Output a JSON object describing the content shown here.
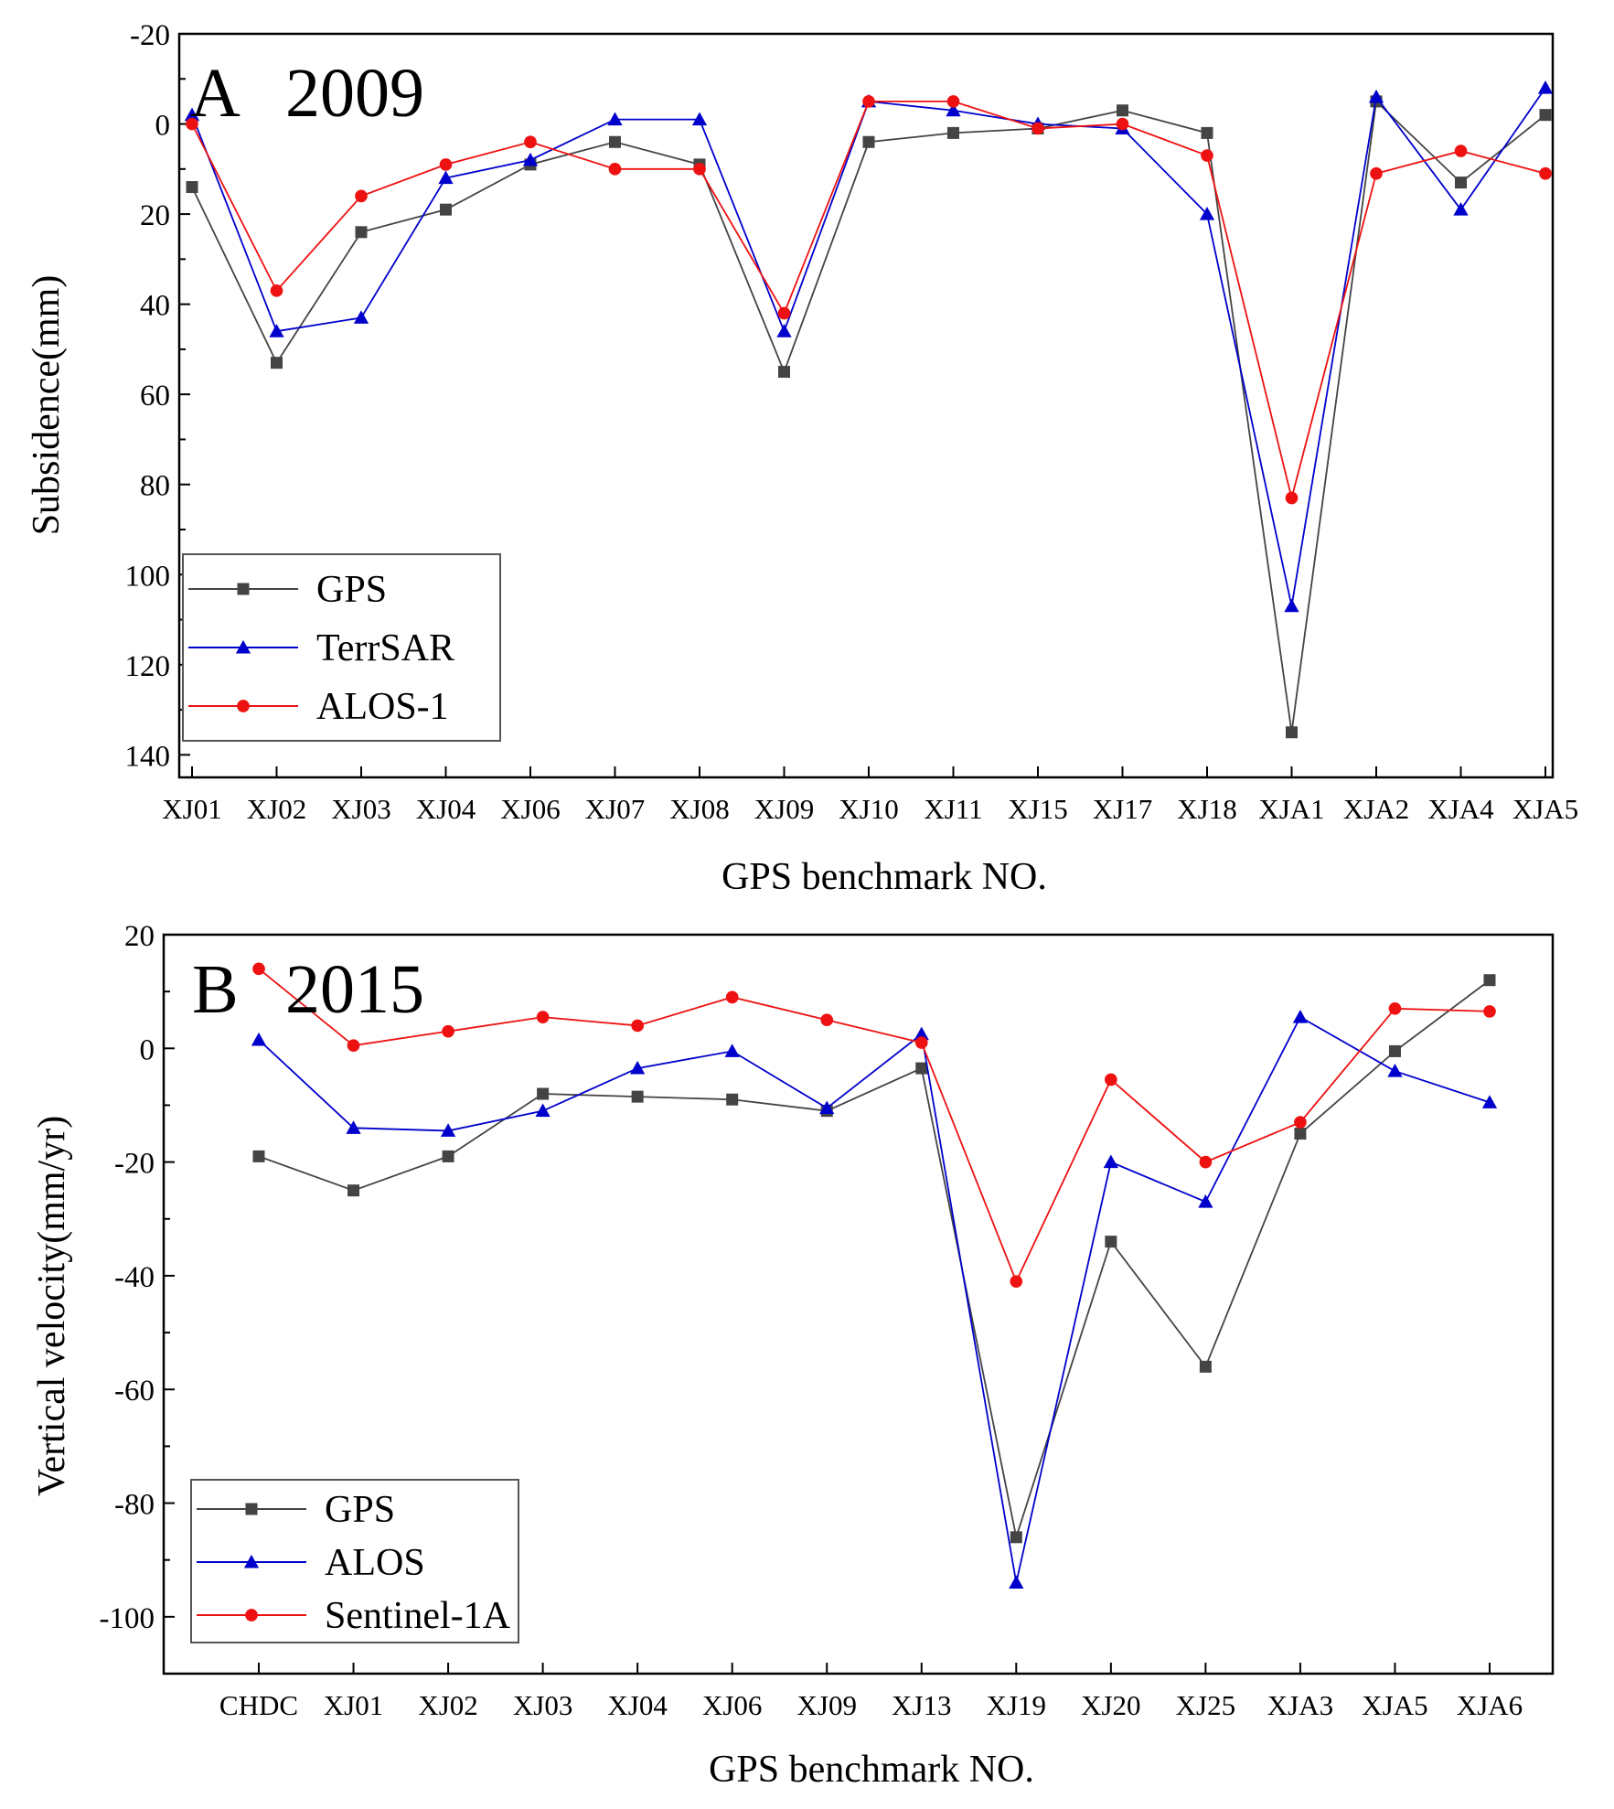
{
  "colors": {
    "gps": "#444444",
    "blue": "#0000cc",
    "red": "#ee1111"
  },
  "chart_data": [
    {
      "type": "line",
      "panel": "A",
      "title": "2009",
      "xlabel": "GPS benchmark NO.",
      "ylabel": "Subsidence(mm)",
      "y_inverted": true,
      "ylim": [
        -20,
        145
      ],
      "yticks": [
        -20,
        0,
        20,
        40,
        60,
        80,
        100,
        120,
        140
      ],
      "categories": [
        "XJ01",
        "XJ02",
        "XJ03",
        "XJ04",
        "XJ06",
        "XJ07",
        "XJ08",
        "XJ09",
        "XJ10",
        "XJ11",
        "XJ15",
        "XJ17",
        "XJ18",
        "XJA1",
        "XJA2",
        "XJA4",
        "XJA5"
      ],
      "legend_position": "bottom-left",
      "series": [
        {
          "name": "GPS",
          "marker": "square",
          "color": "#444444",
          "values": [
            14,
            53,
            24,
            19,
            9,
            4,
            9,
            55,
            4,
            2,
            1,
            -3,
            2,
            135,
            -5,
            13,
            -2
          ]
        },
        {
          "name": "TerrSAR",
          "marker": "triangle",
          "color": "#0000cc",
          "values": [
            -2,
            46,
            43,
            12,
            8,
            -1,
            -1,
            46,
            -5,
            -3,
            0,
            1,
            20,
            107,
            -6,
            19,
            -8
          ]
        },
        {
          "name": "ALOS-1",
          "marker": "circle",
          "color": "#ee1111",
          "values": [
            0,
            37,
            16,
            9,
            4,
            10,
            10,
            42,
            -5,
            -5,
            1,
            0,
            7,
            83,
            11,
            6,
            11
          ]
        }
      ]
    },
    {
      "type": "line",
      "panel": "B",
      "title": "2015",
      "xlabel": "GPS benchmark NO.",
      "ylabel": "Vertical velocity(mm/yr)",
      "ylim": [
        -110,
        20
      ],
      "yticks": [
        -100,
        -80,
        -60,
        -40,
        -20,
        0,
        20
      ],
      "categories": [
        "CHDC",
        "XJ01",
        "XJ02",
        "XJ03",
        "XJ04",
        "XJ06",
        "XJ09",
        "XJ13",
        "XJ19",
        "XJ20",
        "XJ25",
        "XJA3",
        "XJA5",
        "XJA6"
      ],
      "legend_position": "bottom-left",
      "series": [
        {
          "name": "GPS",
          "marker": "square",
          "color": "#444444",
          "values": [
            -19,
            -25,
            -19,
            -8,
            -8.5,
            -9,
            -11,
            -3.5,
            -86,
            -34,
            -56,
            -15,
            -0.5,
            12
          ]
        },
        {
          "name": "ALOS",
          "marker": "triangle",
          "color": "#0000cc",
          "values": [
            1.5,
            -14,
            -14.5,
            -11,
            -3.5,
            -0.5,
            -10.5,
            2.5,
            -94,
            -20,
            -27,
            5.5,
            -4,
            -9.5
          ]
        },
        {
          "name": "Sentinel-1A",
          "marker": "circle",
          "color": "#ee1111",
          "values": [
            14,
            0.5,
            3,
            5.5,
            4,
            9,
            5,
            1,
            -41,
            -5.5,
            -20,
            -13,
            7,
            6.5
          ]
        }
      ]
    }
  ]
}
